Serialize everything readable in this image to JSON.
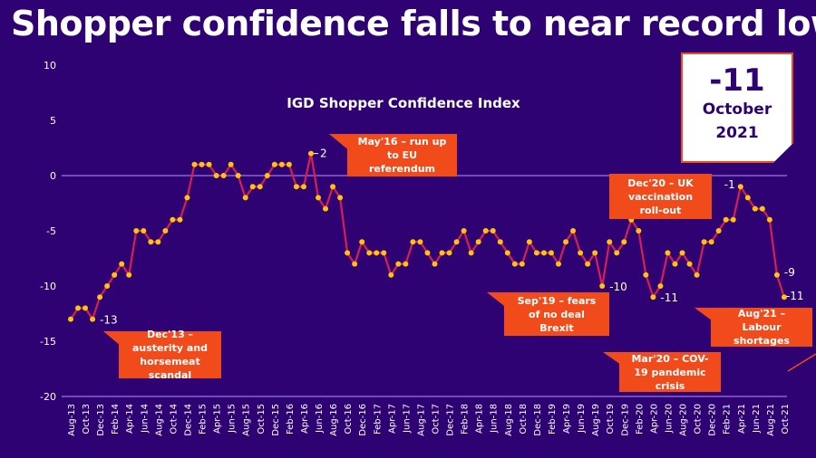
{
  "headline": "Shopper confidence falls to near record low",
  "kpi": {
    "value": "-11",
    "month": "October",
    "year": "2021"
  },
  "colors": {
    "background": "#2e0272",
    "line": "#d6204f",
    "marker": "#ffc20e",
    "callout": "#f24b1b",
    "gridline": "#8a63d2",
    "text": "#ffffff"
  },
  "callouts": [
    {
      "id": "dec13",
      "text": "Dec'13 – austerity and horsemeat scandal"
    },
    {
      "id": "may16",
      "text": "May'16 – run up to EU referendum"
    },
    {
      "id": "sep19",
      "text": "Sep'19 – fears of no deal Brexit"
    },
    {
      "id": "dec20",
      "text": "Dec'20 – UK vaccination roll-out"
    },
    {
      "id": "mar20",
      "text": "Mar'20 – COV-19 pandemic crisis"
    },
    {
      "id": "aug21",
      "text": "Aug'21 – Labour shortages"
    }
  ],
  "chart_data": {
    "type": "line",
    "title": "IGD Shopper Confidence Index",
    "xlabel": "",
    "ylabel": "",
    "ylim": [
      -20,
      10
    ],
    "yticks": [
      10,
      5,
      0,
      -5,
      -10,
      -15,
      -20
    ],
    "gridlines": [
      0,
      -20
    ],
    "x_tick_labels": [
      "Aug-13",
      "Oct-13",
      "Dec-13",
      "Feb-14",
      "Apr-14",
      "Jun-14",
      "Aug-14",
      "Oct-14",
      "Dec-14",
      "Feb-15",
      "Apr-15",
      "Jun-15",
      "Aug-15",
      "Oct-15",
      "Dec-15",
      "Feb-16",
      "Apr-16",
      "Jun-16",
      "Aug-16",
      "Oct-16",
      "Dec-16",
      "Feb-17",
      "Apr-17",
      "Jun-17",
      "Aug-17",
      "Oct-17",
      "Dec-17",
      "Feb-18",
      "Apr-18",
      "Jun-18",
      "Aug-18",
      "Oct-18",
      "Dec-18",
      "Feb-19",
      "Apr-19",
      "Jun-19",
      "Aug-19",
      "Oct-19",
      "Dec-19",
      "Feb-20",
      "Apr-20",
      "Jun-20",
      "Aug-20",
      "Oct-20",
      "Dec-20",
      "Feb-21",
      "Apr-21",
      "Jun-21",
      "Aug-21",
      "Oct-21"
    ],
    "start_month": "Aug-13",
    "frequency": "monthly",
    "series": [
      {
        "name": "IGD Shopper Confidence Index",
        "values": [
          -13,
          -12,
          -12,
          -13,
          -11,
          -10,
          -9,
          -8,
          -9,
          -5,
          -5,
          -6,
          -6,
          -5,
          -4,
          -4,
          -2,
          1,
          1,
          1,
          0,
          0,
          1,
          0,
          -2,
          -1,
          -1,
          0,
          1,
          1,
          1,
          -1,
          -1,
          2,
          -2,
          -3,
          -1,
          -2,
          -7,
          -8,
          -6,
          -7,
          -7,
          -7,
          -9,
          -8,
          -8,
          -6,
          -6,
          -7,
          -8,
          -7,
          -7,
          -6,
          -5,
          -7,
          -6,
          -5,
          -5,
          -6,
          -7,
          -8,
          -8,
          -6,
          -7,
          -7,
          -7,
          -8,
          -6,
          -5,
          -7,
          -8,
          -7,
          -10,
          -6,
          -7,
          -6,
          -4,
          -5,
          -9,
          -11,
          -10,
          -7,
          -8,
          -7,
          -8,
          -9,
          -6,
          -6,
          -5,
          -4,
          -4,
          -1,
          -2,
          -3,
          -3,
          -4,
          -9,
          -11
        ]
      }
    ],
    "data_labels": [
      {
        "index": 3,
        "text": "-13"
      },
      {
        "index": 33,
        "text": "2"
      },
      {
        "index": 73,
        "text": "-10"
      },
      {
        "index": 80,
        "text": "-11"
      },
      {
        "index": 92,
        "text": "-1"
      },
      {
        "index": 97,
        "text": "-9"
      },
      {
        "index": 98,
        "text": "-11"
      }
    ]
  }
}
